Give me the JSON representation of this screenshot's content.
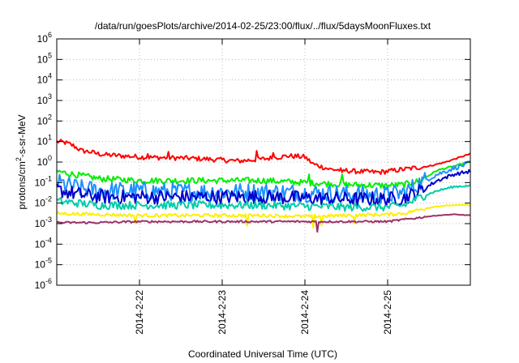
{
  "chart_data": {
    "type": "line",
    "title": "/data/run/goesPlots/archive/2014-02-25/23:00/flux/../flux/5daysMoonFluxes.txt",
    "xlabel": "Coordinated Universal Time (UTC)",
    "ylabel": {
      "prefix": "protons/cm",
      "sup": "2",
      "suffix": "-s-sr-MeV"
    },
    "y_scale": "log",
    "ylim": [
      1e-06,
      1000000.0
    ],
    "yticks": [
      {
        "exp": -6,
        "label_base": "10",
        "label_exp": "-6"
      },
      {
        "exp": -5,
        "label_base": "10",
        "label_exp": "-5"
      },
      {
        "exp": -4,
        "label_base": "10",
        "label_exp": "-4"
      },
      {
        "exp": -3,
        "label_base": "10",
        "label_exp": "-3"
      },
      {
        "exp": -2,
        "label_base": "10",
        "label_exp": "-2"
      },
      {
        "exp": -1,
        "label_base": "10",
        "label_exp": "-1"
      },
      {
        "exp": 0,
        "label_base": "10",
        "label_exp": "0"
      },
      {
        "exp": 1,
        "label_base": "10",
        "label_exp": "1"
      },
      {
        "exp": 2,
        "label_base": "10",
        "label_exp": "2"
      },
      {
        "exp": 3,
        "label_base": "10",
        "label_exp": "3"
      },
      {
        "exp": 4,
        "label_base": "10",
        "label_exp": "4"
      },
      {
        "exp": 5,
        "label_base": "10",
        "label_exp": "5"
      },
      {
        "exp": 6,
        "label_base": "10",
        "label_exp": "6"
      }
    ],
    "xlim": [
      "2014-02-21 00:00",
      "2014-02-26 00:00"
    ],
    "xticks": [
      {
        "value": "2014-02-22 00:00",
        "label": "2014-2-22"
      },
      {
        "value": "2014-02-23 00:00",
        "label": "2014-2-23"
      },
      {
        "value": "2014-02-24 00:00",
        "label": "2014-2-24"
      },
      {
        "value": "2014-02-25 00:00",
        "label": "2014-2-25"
      }
    ],
    "grid": true,
    "series": [
      {
        "color": "#ff0000",
        "log_flux": [
          [
            0,
            1.0
          ],
          [
            0.1,
            0.95
          ],
          [
            0.2,
            0.8
          ],
          [
            0.3,
            0.55
          ],
          [
            0.4,
            0.5
          ],
          [
            0.5,
            0.4
          ],
          [
            0.6,
            0.35
          ],
          [
            0.8,
            0.3
          ],
          [
            1.0,
            0.25
          ],
          [
            1.2,
            0.22
          ],
          [
            1.5,
            0.2
          ],
          [
            1.8,
            0.15
          ],
          [
            2.0,
            0.1
          ],
          [
            2.2,
            0.05
          ],
          [
            2.5,
            0.15
          ],
          [
            2.8,
            0.3
          ],
          [
            3.0,
            0.25
          ],
          [
            3.1,
            -0.1
          ],
          [
            3.3,
            -0.35
          ],
          [
            3.6,
            -0.45
          ],
          [
            3.9,
            -0.5
          ],
          [
            4.1,
            -0.4
          ],
          [
            4.3,
            -0.3
          ],
          [
            4.5,
            -0.2
          ],
          [
            4.7,
            0.0
          ],
          [
            4.85,
            0.2
          ],
          [
            5.0,
            0.4
          ]
        ],
        "noise": 0.12,
        "spikes": [
          [
            0.4,
            0.45
          ],
          [
            1.1,
            0.4
          ],
          [
            1.35,
            0.5
          ],
          [
            2.42,
            0.55
          ],
          [
            2.62,
            0.45
          ],
          [
            3.45,
            -0.5
          ]
        ]
      },
      {
        "color": "#00ee00",
        "log_flux": [
          [
            0,
            -0.45
          ],
          [
            0.2,
            -0.6
          ],
          [
            0.5,
            -0.8
          ],
          [
            1.0,
            -0.9
          ],
          [
            1.5,
            -0.9
          ],
          [
            2.0,
            -0.9
          ],
          [
            2.5,
            -0.9
          ],
          [
            3.0,
            -1.0
          ],
          [
            3.5,
            -1.1
          ],
          [
            4.0,
            -1.15
          ],
          [
            4.2,
            -1.1
          ],
          [
            4.4,
            -0.9
          ],
          [
            4.6,
            -0.4
          ],
          [
            4.8,
            -0.2
          ],
          [
            5.0,
            0.0
          ]
        ],
        "noise": 0.15,
        "spikes": [
          [
            3.05,
            -0.6
          ],
          [
            3.45,
            -0.6
          ]
        ]
      },
      {
        "color": "#1e90ff",
        "log_flux": [
          [
            0,
            -1.0
          ],
          [
            0.3,
            -1.3
          ],
          [
            0.6,
            -1.4
          ],
          [
            1.0,
            -1.4
          ],
          [
            1.5,
            -1.45
          ],
          [
            2.0,
            -1.45
          ],
          [
            2.5,
            -1.45
          ],
          [
            3.0,
            -1.5
          ],
          [
            3.5,
            -1.55
          ],
          [
            4.0,
            -1.6
          ],
          [
            4.2,
            -1.5
          ],
          [
            4.4,
            -1.0
          ],
          [
            4.6,
            -0.6
          ],
          [
            4.8,
            -0.3
          ],
          [
            5.0,
            -0.05
          ]
        ],
        "noise": 0.45,
        "spikes": []
      },
      {
        "color": "#0000cc",
        "log_flux": [
          [
            0,
            -1.35
          ],
          [
            0.3,
            -1.6
          ],
          [
            0.6,
            -1.7
          ],
          [
            1.0,
            -1.7
          ],
          [
            1.5,
            -1.7
          ],
          [
            2.0,
            -1.7
          ],
          [
            2.5,
            -1.7
          ],
          [
            3.0,
            -1.75
          ],
          [
            3.5,
            -1.8
          ],
          [
            4.0,
            -1.8
          ],
          [
            4.2,
            -1.75
          ],
          [
            4.4,
            -1.4
          ],
          [
            4.6,
            -0.9
          ],
          [
            4.8,
            -0.6
          ],
          [
            5.0,
            -0.45
          ]
        ],
        "noise": 0.35,
        "spikes": []
      },
      {
        "color": "#00ccaa",
        "log_flux": [
          [
            0,
            -1.9
          ],
          [
            0.5,
            -2.1
          ],
          [
            1.0,
            -2.1
          ],
          [
            1.5,
            -2.1
          ],
          [
            2.0,
            -2.1
          ],
          [
            2.5,
            -2.1
          ],
          [
            3.0,
            -2.15
          ],
          [
            3.5,
            -2.2
          ],
          [
            4.0,
            -2.2
          ],
          [
            4.2,
            -2.1
          ],
          [
            4.4,
            -1.7
          ],
          [
            4.6,
            -1.4
          ],
          [
            4.8,
            -1.2
          ],
          [
            5.0,
            -1.15
          ]
        ],
        "noise": 0.2,
        "spikes": []
      },
      {
        "color": "#ffee00",
        "log_flux": [
          [
            0,
            -2.5
          ],
          [
            0.5,
            -2.55
          ],
          [
            1.0,
            -2.6
          ],
          [
            1.5,
            -2.6
          ],
          [
            2.0,
            -2.6
          ],
          [
            2.5,
            -2.6
          ],
          [
            3.0,
            -2.65
          ],
          [
            3.5,
            -2.6
          ],
          [
            4.0,
            -2.55
          ],
          [
            4.2,
            -2.5
          ],
          [
            4.4,
            -2.3
          ],
          [
            4.6,
            -2.15
          ],
          [
            4.8,
            -2.1
          ],
          [
            5.0,
            -2.1
          ]
        ],
        "noise": 0.08,
        "spikes": [
          [
            0.95,
            -3.0
          ],
          [
            2.3,
            -3.1
          ],
          [
            3.1,
            -3.2
          ],
          [
            3.2,
            -3.1
          ],
          [
            3.6,
            -3.0
          ]
        ]
      },
      {
        "color": "#993366",
        "log_flux": [
          [
            0,
            -2.95
          ],
          [
            0.5,
            -2.95
          ],
          [
            1.0,
            -2.9
          ],
          [
            1.5,
            -2.9
          ],
          [
            2.0,
            -2.9
          ],
          [
            2.5,
            -2.9
          ],
          [
            3.0,
            -2.9
          ],
          [
            3.5,
            -2.9
          ],
          [
            4.0,
            -2.9
          ],
          [
            4.2,
            -2.8
          ],
          [
            4.4,
            -2.7
          ],
          [
            4.6,
            -2.6
          ],
          [
            4.8,
            -2.55
          ],
          [
            5.0,
            -2.6
          ]
        ],
        "noise": 0.05,
        "spikes": [
          [
            3.15,
            -3.4
          ]
        ]
      }
    ]
  }
}
